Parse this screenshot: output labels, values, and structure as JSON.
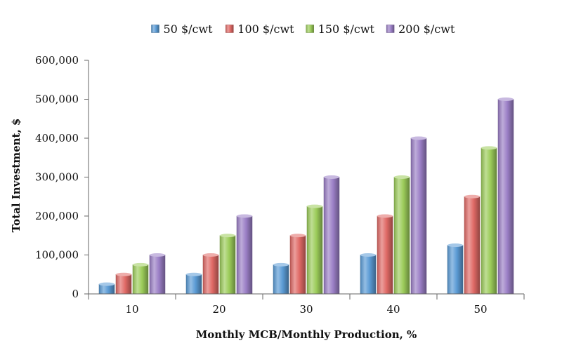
{
  "chart_data": {
    "type": "bar",
    "categories": [
      "10",
      "20",
      "30",
      "40",
      "50"
    ],
    "series": [
      {
        "name": "50 $/cwt",
        "values": [
          25000,
          50000,
          75000,
          100000,
          125000
        ],
        "color": "#5b9bd5"
      },
      {
        "name": "100 $/cwt",
        "values": [
          50000,
          100000,
          150000,
          200000,
          250000
        ],
        "color": "#e06a66"
      },
      {
        "name": "150 $/cwt",
        "values": [
          75000,
          150000,
          225000,
          300000,
          375000
        ],
        "color": "#9ccc5a"
      },
      {
        "name": "200 $/cwt",
        "values": [
          100000,
          200000,
          300000,
          400000,
          500000
        ],
        "color": "#9b7fc6"
      }
    ],
    "xlabel": "Monthly MCB/Monthly Production, %",
    "ylabel": "Total Investment, $",
    "ylim": [
      0,
      600000
    ],
    "yticks": [
      "0",
      "100,000",
      "200,000",
      "300,000",
      "400,000",
      "500,000",
      "600,000"
    ],
    "grid": false,
    "legend_position": "top-center"
  }
}
